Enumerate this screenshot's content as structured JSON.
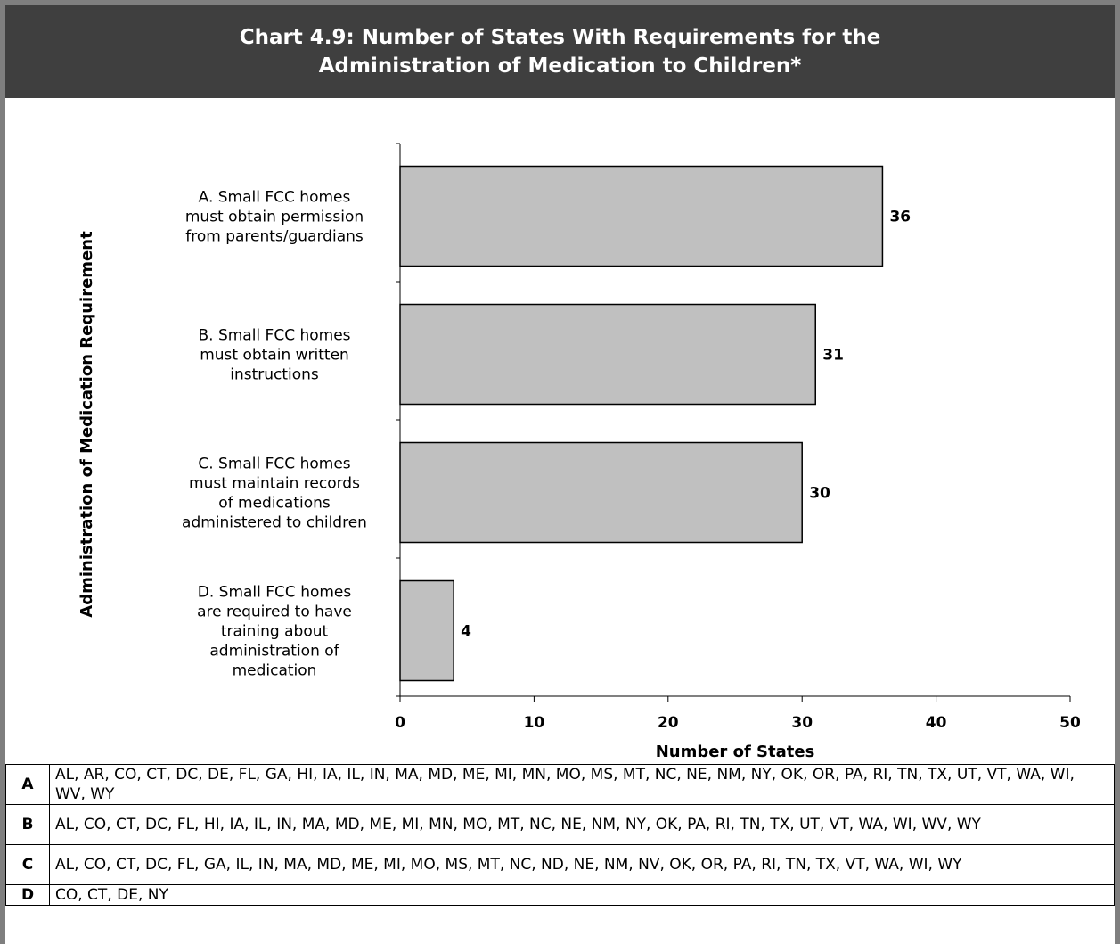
{
  "chart_data": {
    "type": "bar",
    "orientation": "horizontal",
    "title": [
      "Chart 4.9: Number of States With Requirements for the",
      "Administration of Medication to Children*"
    ],
    "xlabel": "Number of States",
    "ylabel": "Administration of Medication Requirement",
    "xlim": [
      0,
      50
    ],
    "xticks": [
      0,
      10,
      20,
      30,
      40,
      50
    ],
    "grid": false,
    "categories": [
      [
        "A. Small FCC homes",
        "must obtain permission",
        "from parents/guardians"
      ],
      [
        "B. Small FCC homes",
        "must obtain written",
        "instructions"
      ],
      [
        "C. Small FCC homes",
        "must maintain records",
        "of medications",
        "administered to children"
      ],
      [
        "D. Small FCC homes",
        "are required to have",
        "training about",
        "administration of",
        "medication"
      ]
    ],
    "values": [
      36,
      31,
      30,
      4
    ],
    "data_labels": [
      "36",
      "31",
      "30",
      "4"
    ],
    "bar_color": "#c0c0c0"
  },
  "legend_table": [
    {
      "key": "A",
      "states": "AL, AR, CO, CT, DC, DE, FL, GA, HI, IA, IL, IN, MA, MD, ME, MI, MN, MO, MS, MT, NC, NE, NM, NY, OK, OR, PA, RI, TN, TX, UT, VT, WA, WI, WV, WY"
    },
    {
      "key": "B",
      "states": "AL, CO, CT, DC, FL, HI, IA, IL, IN, MA, MD, ME, MI, MN, MO, MT, NC, NE, NM, NY, OK, PA, RI, TN, TX, UT, VT, WA, WI, WV, WY"
    },
    {
      "key": "C",
      "states": "AL, CO, CT, DC, FL, GA, IL, IN, MA, MD, ME, MI, MO, MS, MT, NC, ND, NE, NM, NV, OK, OR, PA, RI, TN, TX, VT, WA, WI, WY"
    },
    {
      "key": "D",
      "states": "CO, CT, DE, NY"
    }
  ],
  "colors": {
    "header_bg": "#3f3f3f",
    "header_text": "#ffffff",
    "frame": "#7f7f7f",
    "bar": "#c0c0c0"
  }
}
